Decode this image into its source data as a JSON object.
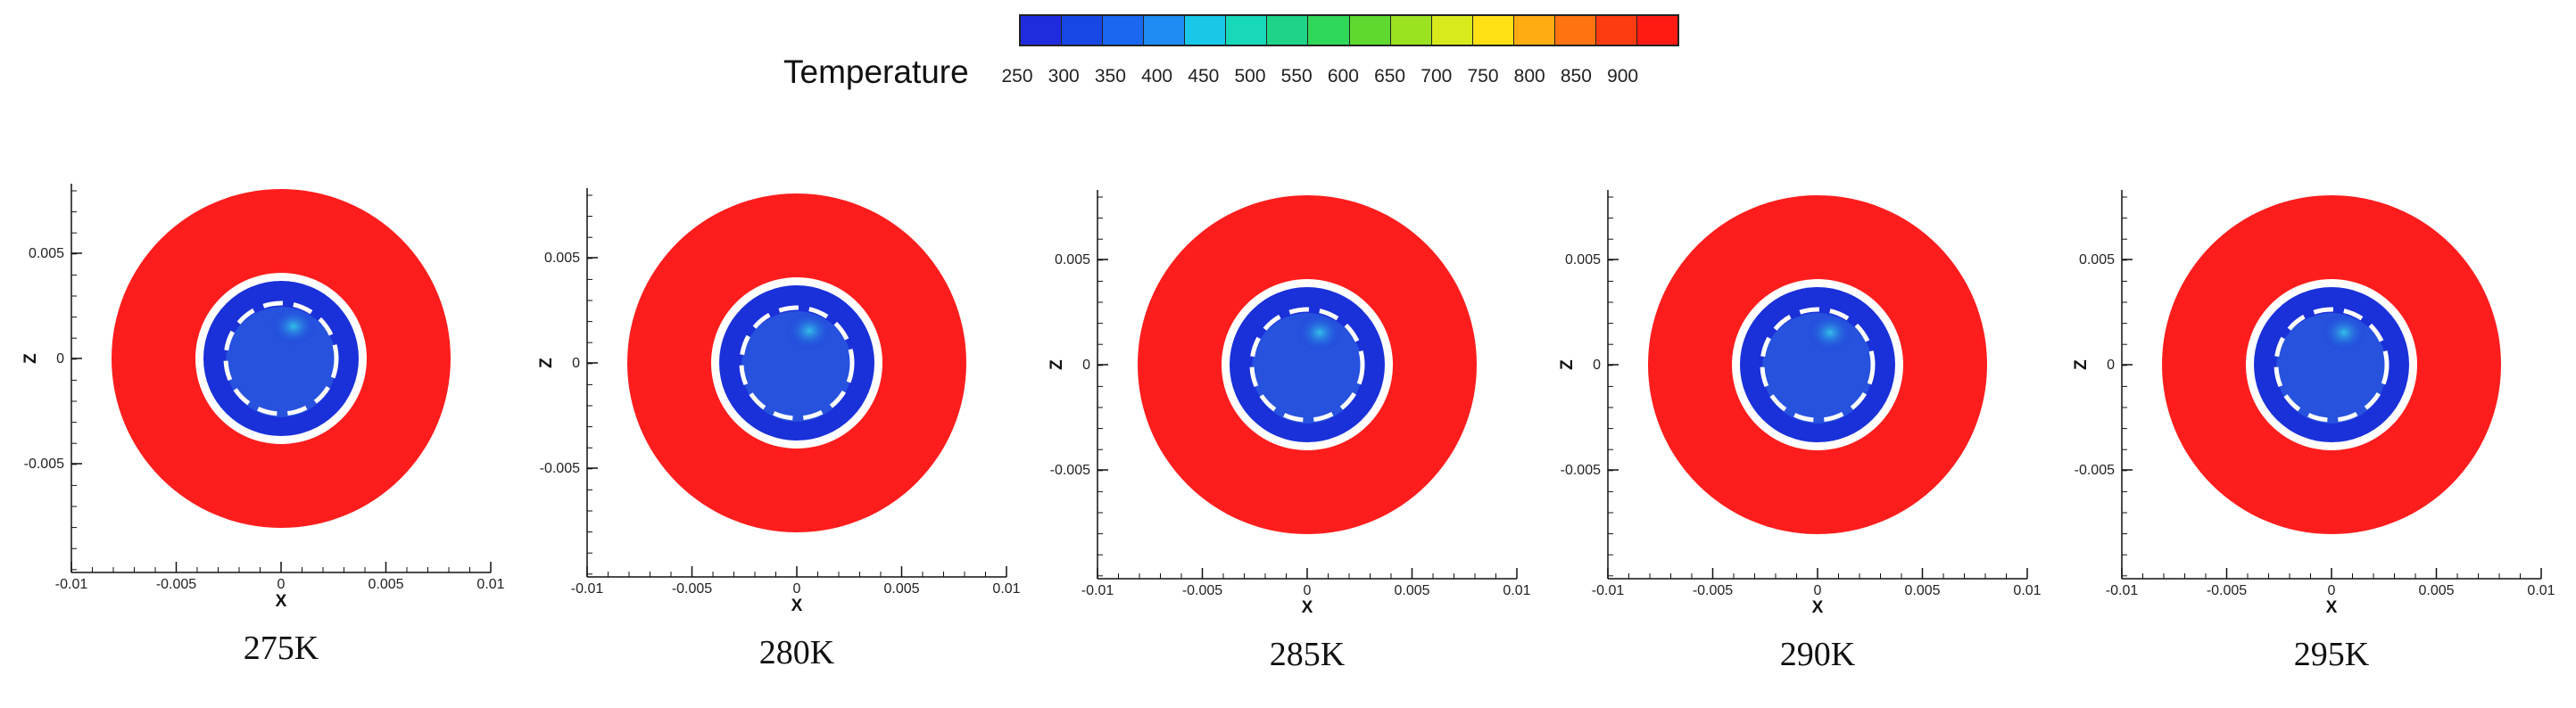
{
  "legend": {
    "title": "Temperature",
    "ticks": [
      "250",
      "300",
      "350",
      "400",
      "450",
      "500",
      "550",
      "600",
      "650",
      "700",
      "750",
      "800",
      "850",
      "900"
    ],
    "colors": [
      "#1f2bdc",
      "#1748e6",
      "#1a68f0",
      "#1e8cf2",
      "#19c8e8",
      "#17d9b8",
      "#1fd488",
      "#30d85a",
      "#5fd930",
      "#9be221",
      "#d8ea1c",
      "#ffe014",
      "#ffac12",
      "#ff7410",
      "#ff3b12",
      "#ff1a14"
    ]
  },
  "axes": {
    "x_title": "X",
    "z_title": "Z",
    "x_ticks": [
      "-0.01",
      "-0.005",
      "0",
      "0.005",
      "0.01"
    ],
    "z_ticks": [
      "0.005",
      "0",
      "-0.005"
    ]
  },
  "colors": {
    "hot": "#fe1d1d",
    "cold": "#1a30d8",
    "warm_spot": "#35c6e8",
    "ring": "#ffffff"
  },
  "panels": [
    {
      "label": "275K"
    },
    {
      "label": "280K"
    },
    {
      "label": "285K"
    },
    {
      "label": "290K"
    },
    {
      "label": "295K"
    }
  ]
}
